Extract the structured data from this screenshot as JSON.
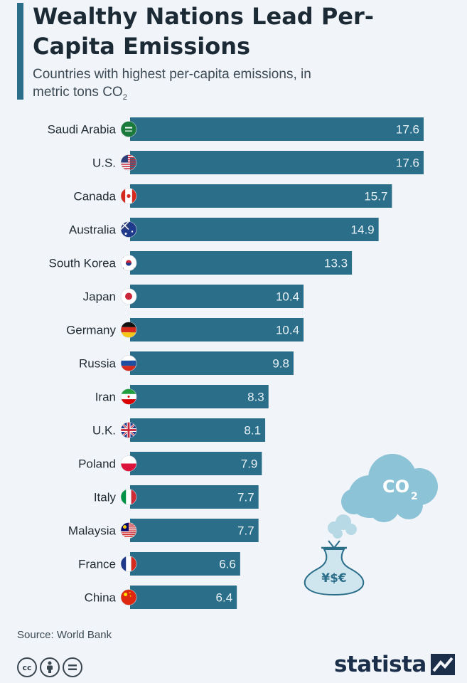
{
  "title": "Wealthy Nations Lead Per-Capita Emissions",
  "subtitle_main": "Countries with highest per-capita emissions, in metric tons CO",
  "subtitle_subscript": "2",
  "source": "Source: World Bank",
  "brand": "statista",
  "license_icons": [
    "cc-icon",
    "attribution-icon",
    "no-derivatives-icon"
  ],
  "illustration": {
    "cloud_text": "CO",
    "cloud_subscript": "2",
    "bag_symbols": "¥$€"
  },
  "colors": {
    "bar": "#2b6e8a",
    "bar_label": "#e8f1f5",
    "cloud": "#8cc3d6",
    "accent": "#2b6e8a"
  },
  "chart_data": {
    "type": "bar",
    "orientation": "horizontal",
    "categories": [
      "Saudi Arabia",
      "U.S.",
      "Canada",
      "Australia",
      "South Korea",
      "Japan",
      "Germany",
      "Russia",
      "Iran",
      "U.K.",
      "Poland",
      "Italy",
      "Malaysia",
      "France",
      "China"
    ],
    "values": [
      17.6,
      17.6,
      15.7,
      14.9,
      13.3,
      10.4,
      10.4,
      9.8,
      8.3,
      8.1,
      7.9,
      7.7,
      7.7,
      6.6,
      6.4
    ],
    "flags": [
      "saudi-arabia-flag-icon",
      "us-flag-icon",
      "canada-flag-icon",
      "australia-flag-icon",
      "south-korea-flag-icon",
      "japan-flag-icon",
      "germany-flag-icon",
      "russia-flag-icon",
      "iran-flag-icon",
      "uk-flag-icon",
      "poland-flag-icon",
      "italy-flag-icon",
      "malaysia-flag-icon",
      "france-flag-icon",
      "china-flag-icon"
    ],
    "title": "Wealthy Nations Lead Per-Capita Emissions",
    "xlabel": "",
    "ylabel": "",
    "xlim": [
      0,
      17.6
    ],
    "grid": false,
    "data_labels": true
  }
}
